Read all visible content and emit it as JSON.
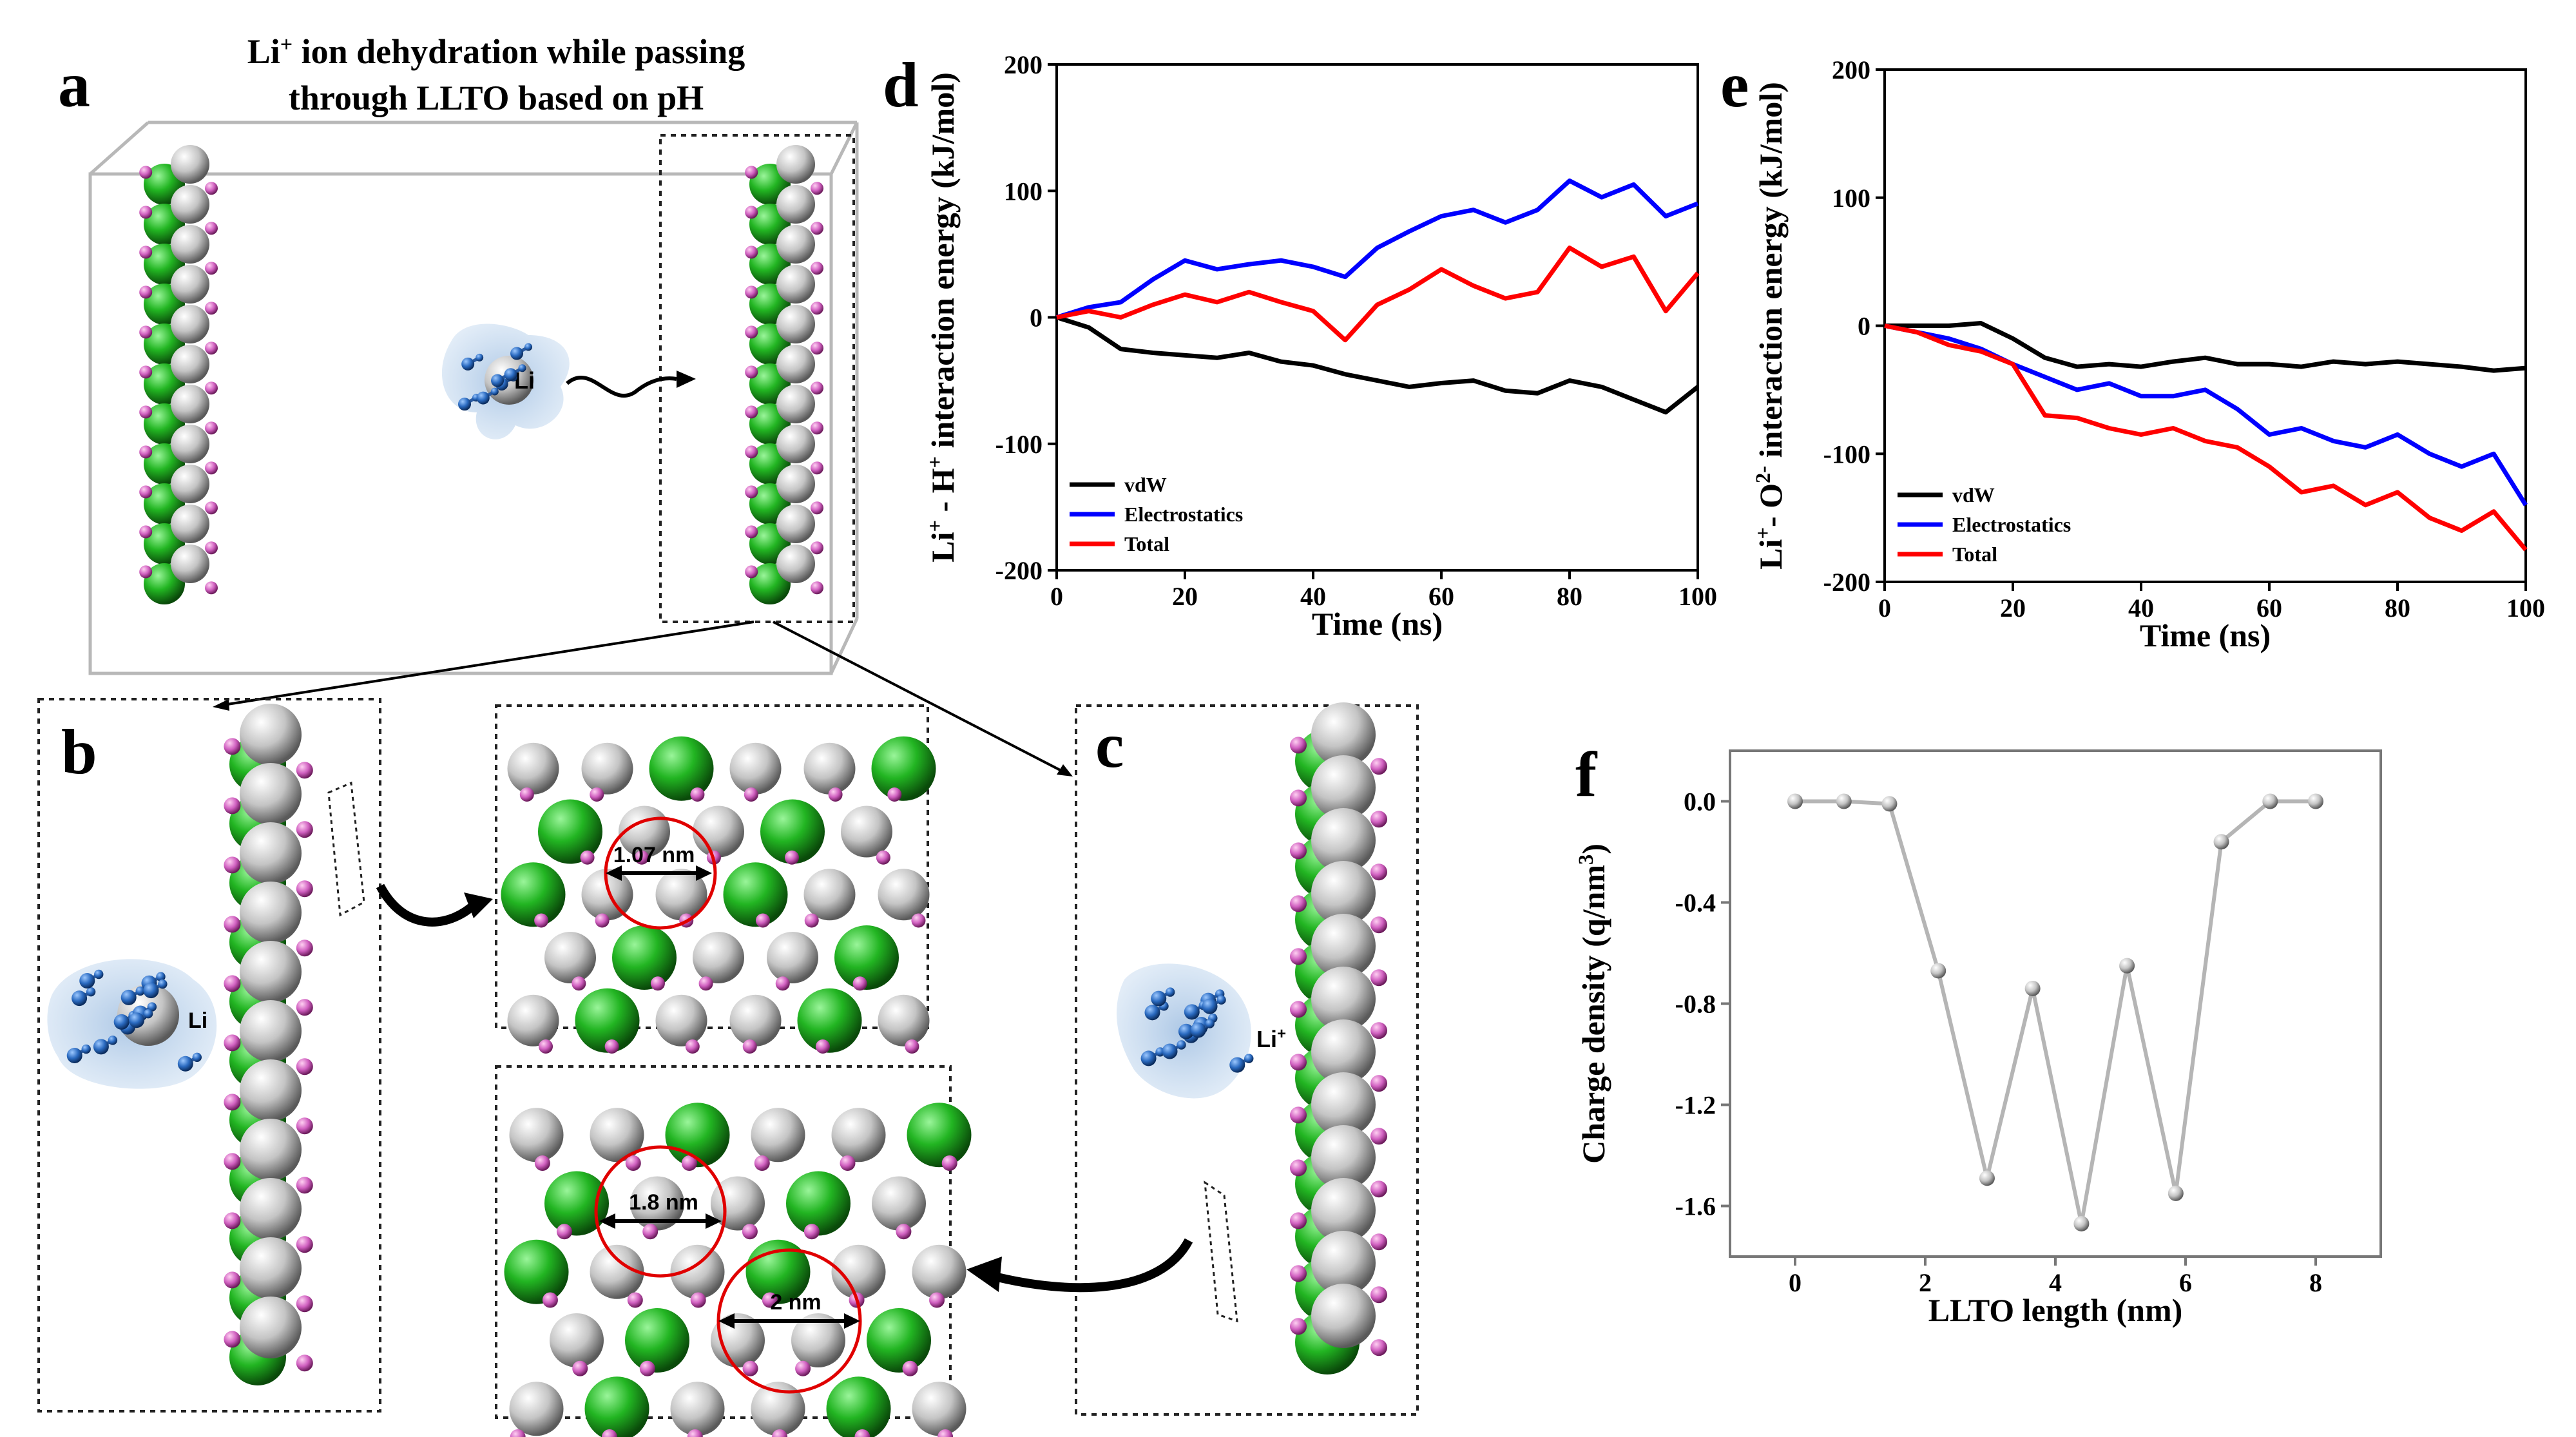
{
  "panels": {
    "a": {
      "label": "a",
      "title_line1_pre": "Li",
      "title_line1_sup": "+",
      "title_line1_post": " ion dehydration while passing",
      "title_line2": "through  LLTO based on pH",
      "ion_label": "Li"
    },
    "b": {
      "label": "b",
      "ion_label": "Li",
      "zoom_distance": "1.07 nm"
    },
    "c": {
      "label": "c",
      "ion_label": "Li",
      "ion_sup": "+",
      "zoom_distance_1": "1.8 nm",
      "zoom_distance_2": "2 nm"
    },
    "d": {
      "label": "d"
    },
    "e": {
      "label": "e"
    },
    "f": {
      "label": "f"
    }
  },
  "colors": {
    "vdW": "#000000",
    "Electrostatics": "#0000ff",
    "Total": "#ff0000",
    "charge": "#b5b5b5",
    "green_atom": "#22b522",
    "gray_atom": "#c8c8c8",
    "pink_atom": "#e070c8",
    "water_blue": "#2060b0"
  },
  "chart_data": [
    {
      "panel": "d",
      "type": "line",
      "xlabel": "Time (ns)",
      "ylabel_parts": [
        "Li",
        "+",
        " - H",
        "+",
        " interaction energy (kJ/mol)"
      ],
      "xlim": [
        0,
        100
      ],
      "ylim": [
        -200,
        200
      ],
      "xticks": [
        0,
        20,
        40,
        60,
        80,
        100
      ],
      "yticks": [
        -200,
        -100,
        0,
        100,
        200
      ],
      "legend_position": "bottom-left",
      "series": [
        {
          "name": "vdW",
          "color": "#000000",
          "x": [
            0,
            5,
            10,
            15,
            20,
            25,
            30,
            35,
            40,
            45,
            50,
            55,
            60,
            65,
            70,
            75,
            80,
            85,
            90,
            95,
            100
          ],
          "y": [
            0,
            -8,
            -25,
            -28,
            -30,
            -32,
            -28,
            -35,
            -38,
            -45,
            -50,
            -55,
            -52,
            -50,
            -58,
            -60,
            -50,
            -55,
            -65,
            -75,
            -55
          ]
        },
        {
          "name": "Electrostatics",
          "color": "#0000ff",
          "x": [
            0,
            5,
            10,
            15,
            20,
            25,
            30,
            35,
            40,
            45,
            50,
            55,
            60,
            65,
            70,
            75,
            80,
            85,
            90,
            95,
            100
          ],
          "y": [
            0,
            8,
            12,
            30,
            45,
            38,
            42,
            45,
            40,
            32,
            55,
            68,
            80,
            85,
            75,
            85,
            108,
            95,
            105,
            80,
            90
          ]
        },
        {
          "name": "Total",
          "color": "#ff0000",
          "x": [
            0,
            5,
            10,
            15,
            20,
            25,
            30,
            35,
            40,
            45,
            50,
            55,
            60,
            65,
            70,
            75,
            80,
            85,
            90,
            95,
            100
          ],
          "y": [
            0,
            5,
            0,
            10,
            18,
            12,
            20,
            12,
            5,
            -18,
            10,
            22,
            38,
            25,
            15,
            20,
            55,
            40,
            48,
            5,
            35
          ]
        }
      ]
    },
    {
      "panel": "e",
      "type": "line",
      "xlabel": "Time (ns)",
      "ylabel_parts": [
        "Li",
        "+",
        "- O",
        "2-",
        " interaction energy (kJ/mol)"
      ],
      "xlim": [
        0,
        100
      ],
      "ylim": [
        -200,
        200
      ],
      "xticks": [
        0,
        20,
        40,
        60,
        80,
        100
      ],
      "yticks": [
        -200,
        -100,
        0,
        100,
        200
      ],
      "legend_position": "bottom-left",
      "series": [
        {
          "name": "vdW",
          "color": "#000000",
          "x": [
            0,
            5,
            10,
            15,
            20,
            25,
            30,
            35,
            40,
            45,
            50,
            55,
            60,
            65,
            70,
            75,
            80,
            85,
            90,
            95,
            100
          ],
          "y": [
            0,
            0,
            0,
            2,
            -10,
            -25,
            -32,
            -30,
            -32,
            -28,
            -25,
            -30,
            -30,
            -32,
            -28,
            -30,
            -28,
            -30,
            -32,
            -35,
            -33
          ]
        },
        {
          "name": "Electrostatics",
          "color": "#0000ff",
          "x": [
            0,
            5,
            10,
            15,
            20,
            25,
            30,
            35,
            40,
            45,
            50,
            55,
            60,
            65,
            70,
            75,
            80,
            85,
            90,
            95,
            100
          ],
          "y": [
            0,
            -5,
            -10,
            -18,
            -30,
            -40,
            -50,
            -45,
            -55,
            -55,
            -50,
            -65,
            -85,
            -80,
            -90,
            -95,
            -85,
            -100,
            -110,
            -100,
            -140
          ]
        },
        {
          "name": "Total",
          "color": "#ff0000",
          "x": [
            0,
            5,
            10,
            15,
            20,
            25,
            30,
            35,
            40,
            45,
            50,
            55,
            60,
            65,
            70,
            75,
            80,
            85,
            90,
            95,
            100
          ],
          "y": [
            0,
            -5,
            -15,
            -20,
            -30,
            -70,
            -72,
            -80,
            -85,
            -80,
            -90,
            -95,
            -110,
            -130,
            -125,
            -140,
            -130,
            -150,
            -160,
            -145,
            -175
          ]
        }
      ]
    },
    {
      "panel": "f",
      "type": "line",
      "xlabel": "LLTO length (nm)",
      "ylabel_parts": [
        "Charge density (q/nm",
        "3",
        ")"
      ],
      "xlim": [
        -1,
        9
      ],
      "ylim": [
        -1.8,
        0.2
      ],
      "xticks": [
        0,
        2,
        4,
        6,
        8
      ],
      "yticks": [
        0.0,
        -0.4,
        -0.8,
        -1.2,
        -1.6
      ],
      "ytick_labels": [
        "0.0",
        "-0.4",
        "-0.8",
        "-1.2",
        "-1.6"
      ],
      "series": [
        {
          "color": "#b5b5b5",
          "x": [
            0,
            0.75,
            1.45,
            2.2,
            2.95,
            3.65,
            4.4,
            5.1,
            5.85,
            6.55,
            7.3,
            8.0
          ],
          "y": [
            0.0,
            0.0,
            -0.01,
            -0.67,
            -1.49,
            -0.74,
            -1.67,
            -0.65,
            -1.55,
            -0.16,
            0.0,
            0.0
          ]
        }
      ]
    }
  ]
}
